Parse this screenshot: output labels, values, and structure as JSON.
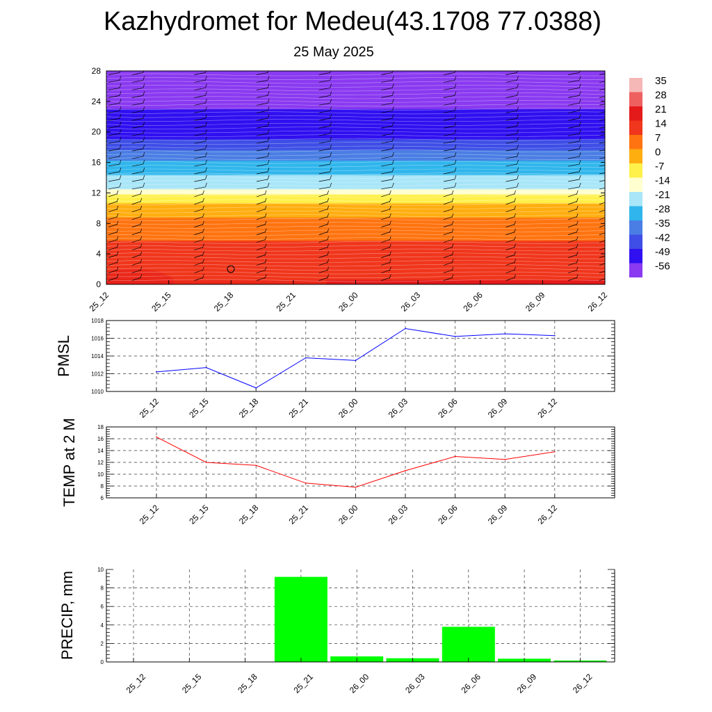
{
  "header": {
    "title": "Kazhydromet for Medeu(43.1708 77.0388)",
    "subtitle": "25 May 2025"
  },
  "chart_data": [
    {
      "type": "heatmap",
      "x_tick_labels": [
        "25_12",
        "25_15",
        "25_18",
        "25_21",
        "26_00",
        "26_03",
        "26_06",
        "26_09",
        "26_12"
      ],
      "y_ticks": [
        0,
        4,
        8,
        12,
        16,
        20,
        24,
        28
      ],
      "ylim": [
        0,
        28
      ],
      "colorbar_labels": [
        "35",
        "28",
        "21",
        "14",
        "7",
        "0",
        "-7",
        "-14",
        "-21",
        "-28",
        "-35",
        "-42",
        "-49",
        "-56"
      ],
      "colorbar_colors": [
        "#f6b7b7",
        "#ee6060",
        "#e41a1a",
        "#f0361c",
        "#ff7410",
        "#ffae10",
        "#fff04a",
        "#ffffd0",
        "#a8e6f8",
        "#30b6ec",
        "#4a7ee4",
        "#3e4ee6",
        "#3010f0",
        "#8a3af0"
      ],
      "temperature_profile": [
        {
          "level": 0,
          "temp": 18
        },
        {
          "level": 4,
          "temp": 14
        },
        {
          "level": 8,
          "temp": 6
        },
        {
          "level": 11.5,
          "temp": -7
        },
        {
          "level": 12.5,
          "temp": -19
        },
        {
          "level": 16,
          "temp": -30
        },
        {
          "level": 18,
          "temp": -40
        },
        {
          "level": 20,
          "temp": -50
        },
        {
          "level": 22,
          "temp": -48
        },
        {
          "level": 24,
          "temp": -58
        },
        {
          "level": 28,
          "temp": -60
        }
      ],
      "colors": {
        "contour": "#ffffff",
        "barb": "#000000"
      }
    },
    {
      "type": "line",
      "ylabel": "PMSL",
      "x_tick_labels": [
        "25_12",
        "25_15",
        "25_18",
        "25_21",
        "26_00",
        "26_03",
        "26_06",
        "26_09",
        "26_12"
      ],
      "y_ticks": [
        1010,
        1012,
        1014,
        1016,
        1018
      ],
      "ylim": [
        1010,
        1018
      ],
      "series": [
        {
          "values": [
            1012.2,
            1012.7,
            1010.4,
            1013.8,
            1013.5,
            1017.1,
            1016.2,
            1016.5,
            1016.3
          ],
          "color": "#0000ff"
        }
      ],
      "grid": true
    },
    {
      "type": "line",
      "ylabel": "TEMP at 2 M",
      "x_tick_labels": [
        "25_12",
        "25_15",
        "25_18",
        "25_21",
        "26_00",
        "26_03",
        "26_06",
        "26_09",
        "26_12"
      ],
      "y_ticks": [
        6,
        8,
        10,
        12,
        14,
        16,
        18
      ],
      "ylim": [
        6,
        18
      ],
      "series": [
        {
          "values": [
            16.3,
            12.0,
            11.5,
            8.5,
            7.8,
            10.6,
            13.0,
            12.5,
            13.8
          ],
          "color": "#ff0000"
        }
      ],
      "grid": true
    },
    {
      "type": "bar",
      "ylabel": "PRECIP, mm",
      "categories": [
        "25_12",
        "25_15",
        "25_18",
        "25_21",
        "26_00",
        "26_03",
        "26_06",
        "26_09",
        "26_12"
      ],
      "y_ticks": [
        0,
        2,
        4,
        6,
        8,
        10
      ],
      "ylim": [
        0,
        10
      ],
      "values": [
        0,
        0,
        0,
        9.2,
        0.6,
        0.4,
        3.8,
        0.35,
        0.15
      ],
      "color": "#00ff00",
      "grid": true
    }
  ]
}
